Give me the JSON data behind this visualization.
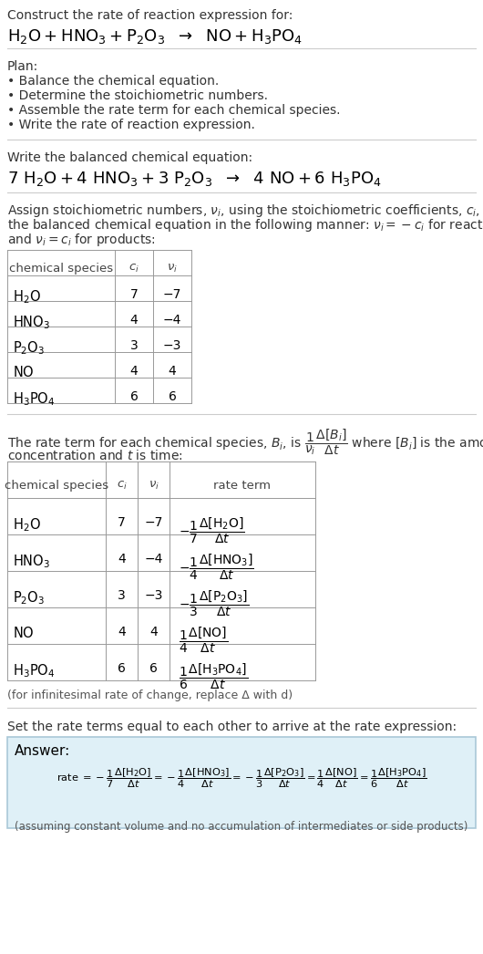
{
  "bg_color": "#ffffff",
  "text_color": "#000000",
  "gray_text": "#555555",
  "light_blue_bg": "#dff0f7",
  "table_border": "#999999",
  "title_text": "Construct the rate of reaction expression for:",
  "plan_header": "Plan:",
  "plan_items": [
    "• Balance the chemical equation.",
    "• Determine the stoichiometric numbers.",
    "• Assemble the rate term for each chemical species.",
    "• Write the rate of reaction expression."
  ],
  "balanced_header": "Write the balanced chemical equation:",
  "stoich_intro_lines": [
    "Assign stoichiometric numbers, νi, using the stoichiometric coefficients, ci, from",
    "the balanced chemical equation in the following manner: νi = −ci for reactants",
    "and νi = ci for products:"
  ],
  "table1_species": [
    "H_2O",
    "HNO_3",
    "P_2O_3",
    "NO",
    "H_3PO_4"
  ],
  "table1_ci": [
    "7",
    "4",
    "3",
    "4",
    "6"
  ],
  "table1_nu": [
    "−7",
    "−4",
    "−3",
    "4",
    "6"
  ],
  "rate_intro1": "The rate term for each chemical species, Bi, is",
  "rate_intro2": "where [Bi] is the amount",
  "rate_intro3": "concentration and t is time:",
  "table2_species": [
    "H_2O",
    "HNO_3",
    "P_2O_3",
    "NO",
    "H_3PO_4"
  ],
  "table2_ci": [
    "7",
    "4",
    "3",
    "4",
    "6"
  ],
  "table2_nu": [
    "−7",
    "−4",
    "−3",
    "4",
    "6"
  ],
  "infinitesimal_note": "(for infinitesimal rate of change, replace Δ with d)",
  "set_equal_text": "Set the rate terms equal to each other to arrive at the rate expression:",
  "answer_label": "Answer:",
  "answer_note": "(assuming constant volume and no accumulation of intermediates or side products)"
}
